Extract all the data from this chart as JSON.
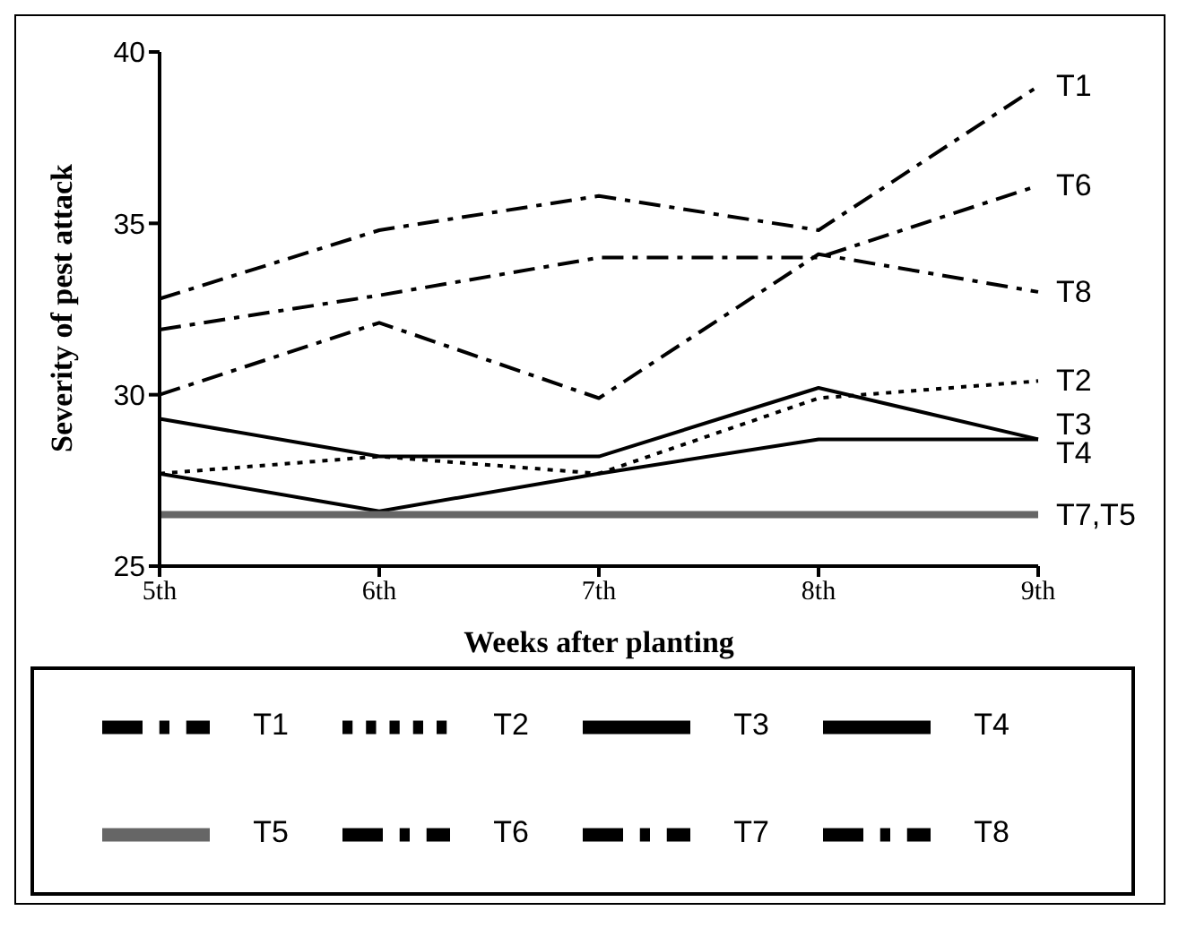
{
  "chart_data": {
    "type": "line",
    "xlabel": "Weeks after planting",
    "ylabel": "Severity of pest attack",
    "categories": [
      "5th",
      "6th",
      "7th",
      "8th",
      "9th"
    ],
    "ylim": [
      25,
      40
    ],
    "yticks": [
      25,
      30,
      35,
      40
    ],
    "grid": false,
    "legend": "bottom",
    "marker": "none",
    "series": [
      {
        "name": "T1",
        "color": "#000000",
        "line_style": "dashed",
        "values": [
          32.8,
          34.8,
          35.8,
          34.8,
          39
        ]
      },
      {
        "name": "T2",
        "color": "#000000",
        "line_style": "dotted",
        "values": [
          27.7,
          28.2,
          27.7,
          29.9,
          30.4
        ]
      },
      {
        "name": "T3",
        "color": "#000000",
        "line_style": "solid",
        "values": [
          29.3,
          28.2,
          28.2,
          30.2,
          28.7
        ]
      },
      {
        "name": "T4",
        "color": "#000000",
        "line_style": "solid",
        "values": [
          27.7,
          26.6,
          27.7,
          28.7,
          28.7
        ]
      },
      {
        "name": "T5",
        "color": "#666666",
        "line_style": "solid",
        "values": [
          26.5,
          26.5,
          26.5,
          26.5,
          26.5
        ]
      },
      {
        "name": "T6",
        "color": "#000000",
        "line_style": "dashed",
        "values": [
          31.9,
          32.9,
          34,
          34,
          36.1
        ]
      },
      {
        "name": "T7",
        "color": "#000000",
        "line_style": "dashed",
        "values": [
          null,
          null,
          null,
          null,
          null
        ]
      },
      {
        "name": "T8",
        "color": "#000000",
        "line_style": "dashed",
        "values": [
          30,
          32.1,
          29.9,
          34.1,
          33
        ]
      }
    ],
    "annotations": [
      {
        "text": "T1",
        "x": "9th",
        "y": 39
      },
      {
        "text": "T6",
        "x": "9th",
        "y": 36.1
      },
      {
        "text": "T8",
        "x": "9th",
        "y": 33
      },
      {
        "text": "T2",
        "x": "9th",
        "y": 30.4
      },
      {
        "text": "T3",
        "x": "9th",
        "y": 28.7
      },
      {
        "text": "T4",
        "x": "9th",
        "y": 28.7
      },
      {
        "text": "T7,T5",
        "x": "9th",
        "y": 26.5
      }
    ]
  }
}
